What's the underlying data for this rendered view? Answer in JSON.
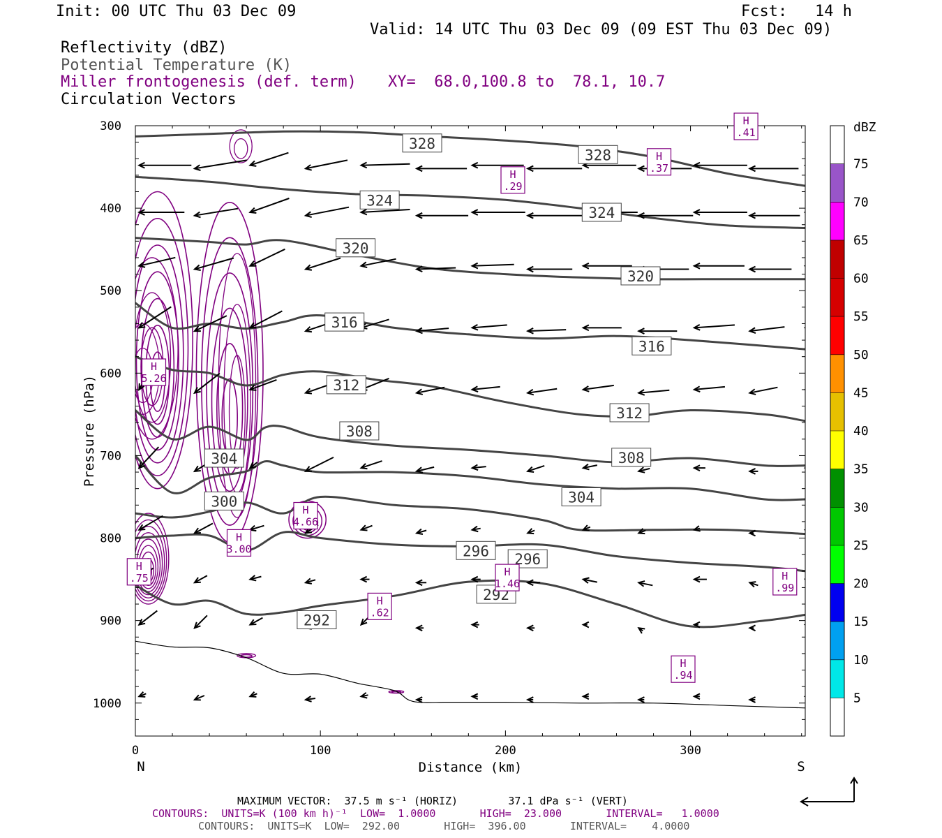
{
  "header": {
    "init": "Init: 00 UTC Thu 03 Dec 09",
    "fcst_label": "Fcst:",
    "fcst_value": "14 h",
    "valid": "Valid: 14 UTC Thu 03 Dec 09 (09 EST Thu 03 Dec 09)",
    "field1": "Reflectivity (dBZ)",
    "field2": "Potential Temperature (K)",
    "field3": "Miller frontogenesis (def. term)",
    "xy": "XY=  68.0,100.8 to  78.1, 10.7",
    "field4": "Circulation Vectors"
  },
  "footer": {
    "max_vector": "MAXIMUM VECTOR:  37.5 m s⁻¹ (HORIZ)        37.1 dPa s⁻¹ (VERT)",
    "contours1": "CONTOURS:  UNITS=K (100 km h)⁻¹  LOW=  1.0000       HIGH=  23.000       INTERVAL=   1.0000",
    "contours2": "CONTOURS:  UNITS=K  LOW=  292.00       HIGH=  396.00       INTERVAL=    4.0000"
  },
  "colors": {
    "theta": "#444444",
    "frontogenesis": "#800080",
    "vectors": "#000000",
    "terrain": "#000000"
  },
  "chart_data": {
    "type": "cross-section",
    "xlabel": "Distance (km)",
    "ylabel": "Pressure (hPa)",
    "xlim": [
      0,
      362
    ],
    "ylim": [
      1040,
      300
    ],
    "x_ticks": [
      0,
      100,
      200,
      300
    ],
    "y_ticks": [
      300,
      400,
      500,
      600,
      700,
      800,
      900,
      1000
    ],
    "left_end_label": "N",
    "right_end_label": "S",
    "colorbar": {
      "unit": "dBZ",
      "levels": [
        5,
        10,
        15,
        20,
        25,
        30,
        35,
        40,
        45,
        50,
        55,
        60,
        65,
        70,
        75
      ],
      "colors": [
        "#ffffff",
        "#00e8e8",
        "#00a0f0",
        "#0000f0",
        "#00ff00",
        "#00c800",
        "#009000",
        "#ffff00",
        "#e6c000",
        "#ff9000",
        "#ff0000",
        "#d60000",
        "#c00000",
        "#ff00ff",
        "#9955c9",
        "#ffffff"
      ]
    },
    "theta_contours": [
      {
        "label": "328",
        "x": [
          0,
          40,
          80,
          120,
          160,
          200,
          240,
          280,
          320,
          362
        ],
        "p": [
          313,
          310,
          307,
          308,
          313,
          318,
          325,
          338,
          358,
          373
        ]
      },
      {
        "label": "324",
        "x": [
          0,
          40,
          80,
          120,
          160,
          200,
          240,
          280,
          320,
          362
        ],
        "p": [
          362,
          368,
          377,
          383,
          385,
          390,
          400,
          412,
          421,
          424
        ]
      },
      {
        "label": "320",
        "x": [
          0,
          40,
          60,
          80,
          120,
          160,
          200,
          240,
          280,
          320,
          362
        ],
        "p": [
          436,
          441,
          444,
          439,
          457,
          473,
          480,
          484,
          486,
          486,
          486
        ]
      },
      {
        "label": "316",
        "x": [
          0,
          20,
          40,
          60,
          80,
          100,
          140,
          180,
          220,
          260,
          300,
          362
        ],
        "p": [
          515,
          545,
          540,
          546,
          538,
          530,
          545,
          553,
          558,
          555,
          560,
          571
        ]
      },
      {
        "label": "312",
        "x": [
          0,
          20,
          40,
          60,
          80,
          100,
          130,
          160,
          200,
          240,
          270,
          300,
          340,
          362
        ],
        "p": [
          580,
          596,
          600,
          615,
          602,
          598,
          608,
          616,
          635,
          650,
          652,
          645,
          650,
          658
        ]
      },
      {
        "label": "308",
        "x": [
          0,
          20,
          40,
          60,
          70,
          80,
          100,
          140,
          180,
          220,
          260,
          300,
          340,
          362
        ],
        "p": [
          645,
          680,
          665,
          681,
          666,
          665,
          678,
          688,
          693,
          700,
          708,
          703,
          712,
          712
        ]
      },
      {
        "label": "304",
        "x": [
          0,
          20,
          40,
          60,
          70,
          80,
          100,
          140,
          180,
          220,
          260,
          300,
          340,
          362
        ],
        "p": [
          700,
          745,
          727,
          719,
          707,
          712,
          720,
          720,
          725,
          735,
          740,
          740,
          753,
          753
        ]
      },
      {
        "label": "300",
        "x": [
          0,
          20,
          40,
          60,
          80,
          100,
          140,
          180,
          220,
          240,
          280,
          320,
          362
        ],
        "p": [
          770,
          775,
          768,
          757,
          770,
          750,
          760,
          765,
          778,
          790,
          790,
          790,
          795
        ]
      },
      {
        "label": "296",
        "x": [
          0,
          20,
          40,
          60,
          80,
          100,
          140,
          180,
          220,
          260,
          300,
          340,
          362
        ],
        "p": [
          800,
          797,
          797,
          815,
          793,
          800,
          808,
          810,
          808,
          822,
          830,
          835,
          840
        ]
      },
      {
        "label": "292",
        "x": [
          0,
          20,
          40,
          60,
          80,
          100,
          140,
          180,
          220,
          260,
          300,
          340,
          362
        ],
        "p": [
          857,
          880,
          876,
          892,
          890,
          882,
          870,
          853,
          855,
          880,
          907,
          900,
          893
        ]
      }
    ],
    "theta_labels": [
      {
        "text": "328",
        "x": 155,
        "p": 321
      },
      {
        "text": "328",
        "x": 250,
        "p": 335
      },
      {
        "text": "324",
        "x": 132,
        "p": 390
      },
      {
        "text": "324",
        "x": 252,
        "p": 405
      },
      {
        "text": "320",
        "x": 119,
        "p": 448
      },
      {
        "text": "320",
        "x": 273,
        "p": 482
      },
      {
        "text": "316",
        "x": 113,
        "p": 538
      },
      {
        "text": "316",
        "x": 279,
        "p": 567
      },
      {
        "text": "312",
        "x": 114,
        "p": 614
      },
      {
        "text": "312",
        "x": 267,
        "p": 648
      },
      {
        "text": "308",
        "x": 121,
        "p": 670
      },
      {
        "text": "308",
        "x": 268,
        "p": 702
      },
      {
        "text": "304",
        "x": 48,
        "p": 703
      },
      {
        "text": "304",
        "x": 241,
        "p": 750
      },
      {
        "text": "300",
        "x": 48,
        "p": 755
      },
      {
        "text": "296",
        "x": 184,
        "p": 815
      },
      {
        "text": "296",
        "x": 212,
        "p": 825
      },
      {
        "text": "292",
        "x": 195,
        "p": 868
      },
      {
        "text": "292",
        "x": 98,
        "p": 899
      }
    ],
    "frontogenesis_maxima": [
      {
        "label": "H",
        "value": "5.26",
        "x": 10,
        "p": 598
      },
      {
        "label": "H",
        "value": "4.66",
        "x": 92,
        "p": 772
      },
      {
        "label": "H",
        "value": "3.00",
        "x": 56,
        "p": 805
      },
      {
        "label": "H",
        "value": ".75",
        "x": 2,
        "p": 840
      },
      {
        "label": "H",
        "value": "1.46",
        "x": 201,
        "p": 847
      },
      {
        "label": "H",
        "value": ".62",
        "x": 132,
        "p": 882
      },
      {
        "label": "H",
        "value": ".99",
        "x": 351,
        "p": 852
      },
      {
        "label": "H",
        "value": ".94",
        "x": 296,
        "p": 958
      },
      {
        "label": "H",
        "value": ".29",
        "x": 204,
        "p": 365
      },
      {
        "label": "H",
        "value": ".37",
        "x": 283,
        "p": 343
      },
      {
        "label": "H",
        "value": ".41",
        "x": 330,
        "p": 300
      }
    ],
    "terrain": {
      "x": [
        0,
        20,
        40,
        60,
        80,
        100,
        120,
        140,
        150,
        170,
        200,
        240,
        280,
        320,
        362
      ],
      "p": [
        925,
        932,
        933,
        945,
        964,
        965,
        976,
        985,
        998,
        999,
        999,
        1000,
        1000,
        1003,
        1006
      ]
    }
  }
}
